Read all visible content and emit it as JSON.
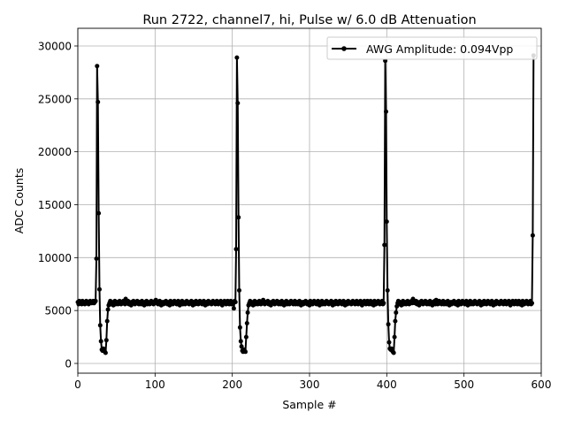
{
  "chart_data": {
    "type": "line",
    "title": "Run 2722, channel7, hi, Pulse w/ 6.0 dB Attenuation",
    "xlabel": "Sample #",
    "ylabel": "ADC Counts",
    "xlim": [
      0,
      600
    ],
    "ylim": [
      -920,
      31670
    ],
    "xticks": [
      0,
      100,
      200,
      300,
      400,
      500,
      600
    ],
    "yticks": [
      0,
      5000,
      10000,
      15000,
      20000,
      25000,
      30000
    ],
    "grid": true,
    "legend_position": "top-right",
    "series": [
      {
        "name": "AWG Amplitude: 0.094Vpp",
        "color": "#000000",
        "marker": "circle",
        "x_start": 0,
        "x_step": 1,
        "y": [
          5800,
          5600,
          5900,
          5700,
          5800,
          5600,
          5900,
          5800,
          5700,
          5600,
          5800,
          5900,
          5700,
          5800,
          5600,
          5700,
          5900,
          5800,
          5700,
          5800,
          5900,
          5700,
          5800,
          5900,
          9900,
          28100,
          24700,
          14200,
          7000,
          3600,
          2100,
          1300,
          1200,
          1400,
          1300,
          1100,
          1000,
          2200,
          4000,
          5100,
          5500,
          5700,
          5900,
          5600,
          5800,
          5700,
          5500,
          5800,
          5900,
          5600,
          5700,
          5800,
          5600,
          5700,
          5900,
          5800,
          5600,
          5700,
          5800,
          5900,
          5700,
          5600,
          6100,
          5800,
          5700,
          5900,
          5600,
          5800,
          5700,
          5500,
          5800,
          5700,
          5900,
          5800,
          5600,
          5700,
          5800,
          5900,
          5700,
          5600,
          5800,
          5700,
          5600,
          5900,
          5800,
          5700,
          5500,
          5800,
          5700,
          5900,
          5600,
          5800,
          5700,
          5600,
          5800,
          5900,
          5700,
          5800,
          5600,
          5700,
          5900,
          6000,
          5700,
          5800,
          5600,
          5700,
          5900,
          5800,
          5500,
          5700,
          5800,
          5600,
          5800,
          5700,
          5900,
          5800,
          5600,
          5700,
          5800,
          5500,
          5900,
          5700,
          5800,
          5600,
          5700,
          5900,
          5800,
          5700,
          5600,
          5800,
          5900,
          5700,
          5500,
          5800,
          5700,
          5900,
          5600,
          5800,
          5700,
          5600,
          5800,
          5900,
          5700,
          5800,
          5600,
          5700,
          5800,
          5900,
          5700,
          5500,
          5800,
          5700,
          5600,
          5900,
          5800,
          5700,
          5600,
          5800,
          5900,
          5700,
          5800,
          5600,
          5700,
          5900,
          5800,
          5500,
          5700,
          5800,
          5600,
          5900,
          5700,
          5800,
          5700,
          5600,
          5800,
          5900,
          5700,
          5800,
          5600,
          5700,
          5900,
          5800,
          5600,
          5700,
          5800,
          5900,
          5700,
          5500,
          5800,
          5700,
          5900,
          5800,
          5600,
          5700,
          5900,
          5800,
          5600,
          5700,
          5900,
          5600,
          5800,
          5700,
          5200,
          5900,
          5800,
          10800,
          28900,
          24600,
          13800,
          6900,
          3400,
          2100,
          1600,
          1200,
          1100,
          1300,
          1200,
          1100,
          2500,
          3800,
          4800,
          5500,
          5700,
          5900,
          5600,
          5800,
          5700,
          5500,
          5800,
          5900,
          5600,
          5700,
          5800,
          5600,
          5700,
          5900,
          5800,
          5600,
          5700,
          5800,
          6000,
          5700,
          5600,
          5800,
          5800,
          5700,
          5900,
          5600,
          5800,
          5700,
          5500,
          5800,
          5700,
          5900,
          5800,
          5600,
          5700,
          5800,
          5900,
          5700,
          5600,
          5800,
          5700,
          5600,
          5900,
          5800,
          5700,
          5500,
          5800,
          5700,
          5900,
          5600,
          5800,
          5700,
          5600,
          5800,
          5900,
          5700,
          5800,
          5600,
          5700,
          5900,
          5600,
          5700,
          5800,
          5600,
          5700,
          5900,
          5800,
          5500,
          5700,
          5800,
          5600,
          5800,
          5700,
          5900,
          5800,
          5600,
          5700,
          5800,
          5500,
          5900,
          5700,
          5800,
          5600,
          5700,
          5900,
          5800,
          5700,
          5600,
          5800,
          5900,
          5700,
          5500,
          5800,
          5700,
          5900,
          5600,
          5800,
          5700,
          5600,
          5800,
          5900,
          5700,
          5800,
          5600,
          5700,
          5800,
          5900,
          5700,
          5500,
          5800,
          5700,
          5600,
          5900,
          5800,
          5700,
          5600,
          5800,
          5900,
          5700,
          5800,
          5600,
          5700,
          5900,
          5800,
          5500,
          5700,
          5800,
          5600,
          5900,
          5700,
          5800,
          5700,
          5600,
          5800,
          5900,
          5700,
          5800,
          5600,
          5700,
          5900,
          5800,
          5600,
          5700,
          5800,
          5900,
          5700,
          5500,
          5800,
          5700,
          5900,
          5800,
          5600,
          5700,
          5900,
          5800,
          5600,
          5700,
          5900,
          5600,
          5800,
          5700,
          5500,
          5900,
          5800,
          5600,
          5700,
          5800,
          5900,
          5700,
          5600,
          5800,
          5700,
          5900,
          5600,
          5700,
          11200,
          28600,
          23800,
          13400,
          6900,
          3700,
          2000,
          1400,
          1300,
          1400,
          1200,
          1100,
          1000,
          2500,
          4000,
          4800,
          5400,
          5700,
          5900,
          5600,
          5800,
          5700,
          5500,
          5800,
          5900,
          5600,
          5700,
          5800,
          5600,
          5700,
          5900,
          5800,
          5600,
          5700,
          5800,
          5900,
          5700,
          6100,
          5800,
          5800,
          5700,
          5900,
          5600,
          5800,
          5700,
          5500,
          5800,
          5700,
          5900,
          5800,
          5600,
          5700,
          5800,
          5900,
          5700,
          5600,
          5800,
          5700,
          5600,
          5900,
          5800,
          5700,
          5500,
          5800,
          5700,
          5900,
          5600,
          6000,
          5700,
          5600,
          5800,
          5900,
          5700,
          5800,
          5600,
          5700,
          5900,
          5600,
          5700,
          5800,
          5600,
          5700,
          5900,
          5800,
          5500,
          5700,
          5800,
          5600,
          5800,
          5700,
          5900,
          5800,
          5600,
          5700,
          5800,
          5500,
          5900,
          5700,
          5800,
          5600,
          5700,
          5900,
          5800,
          5700,
          5600,
          5800,
          5900,
          5700,
          5500,
          5800,
          5700,
          5900,
          5600,
          5800,
          5700,
          5600,
          5800,
          5900,
          5700,
          5800,
          5600,
          5700,
          5800,
          5900,
          5700,
          5500,
          5800,
          5700,
          5600,
          5900,
          5800,
          5700,
          5600,
          5800,
          5900,
          5700,
          5800,
          5600,
          5700,
          5900,
          5800,
          5500,
          5700,
          5800,
          5600,
          5900,
          5700,
          5800,
          5700,
          5600,
          5800,
          5900,
          5700,
          5800,
          5600,
          5700,
          5900,
          5800,
          5600,
          5700,
          5800,
          5900,
          5700,
          5500,
          5800,
          5700,
          5900,
          5800,
          5600,
          5700,
          5900,
          5800,
          5600,
          5700,
          5900,
          5600,
          5800,
          5700,
          5500,
          5900,
          5800,
          5600,
          5700,
          5800,
          5900,
          5700,
          5600,
          5800,
          5700,
          5900,
          5600,
          5700,
          12100,
          29100
        ]
      }
    ]
  }
}
